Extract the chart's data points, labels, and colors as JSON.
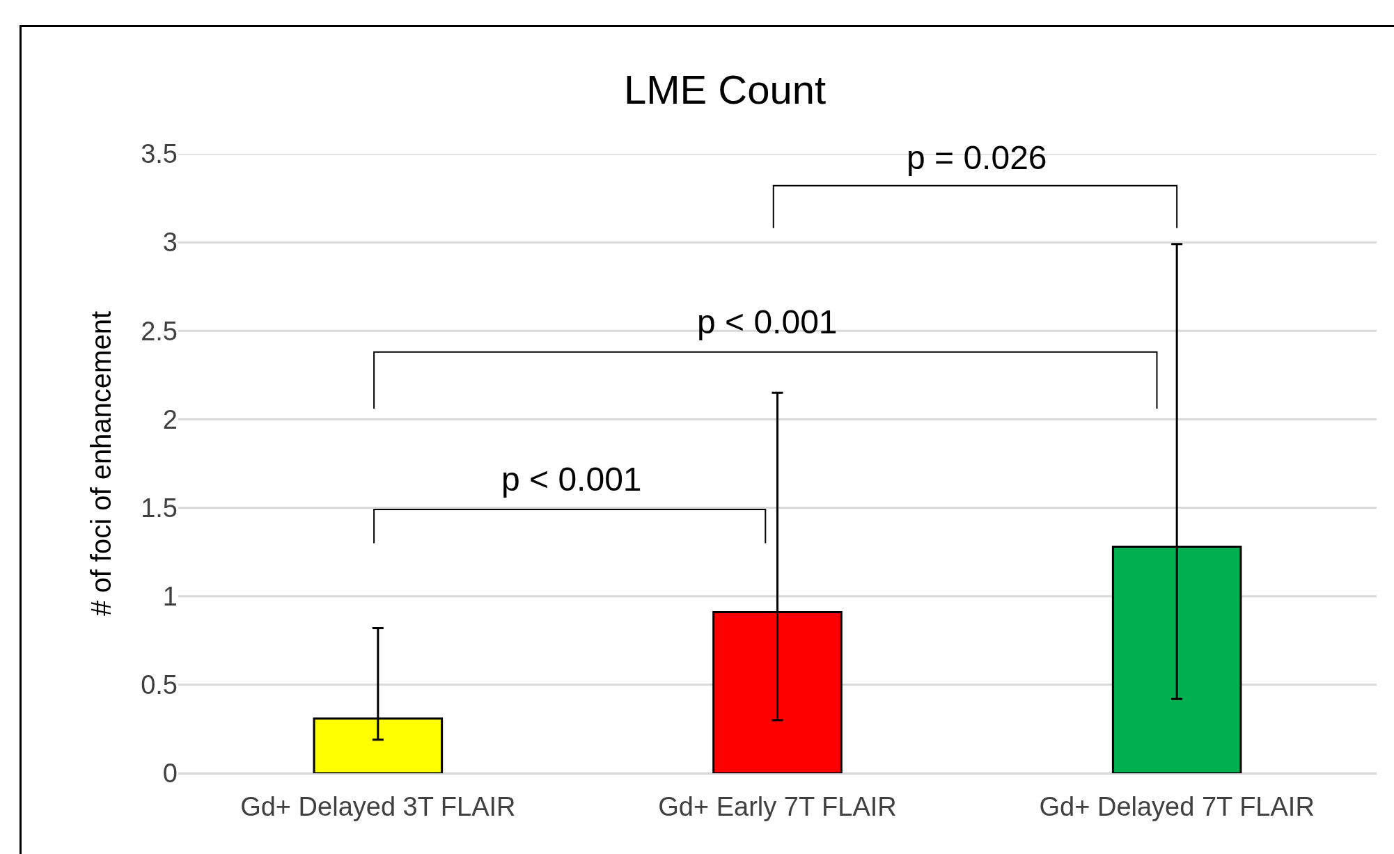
{
  "chart_data": {
    "type": "bar",
    "title": "LME Count",
    "ylabel": "# of foci of enhancement",
    "categories": [
      "Gd+ Delayed 3T FLAIR",
      "Gd+ Early 7T FLAIR",
      "Gd+ Delayed 7T FLAIR"
    ],
    "values": [
      0.31,
      0.91,
      1.28
    ],
    "colors": [
      "#ffff00",
      "#ff0000",
      "#00b050"
    ],
    "errors": [
      [
        0.19,
        0.82
      ],
      [
        0.3,
        2.15
      ],
      [
        0.42,
        2.99
      ]
    ],
    "ylim": [
      0,
      3.5
    ],
    "yticks": [
      0,
      0.5,
      1,
      1.5,
      2,
      2.5,
      3,
      3.5
    ],
    "grid": "y",
    "annotations": [
      "p = 0.026",
      "p < 0.001",
      "p < 0.001"
    ]
  }
}
